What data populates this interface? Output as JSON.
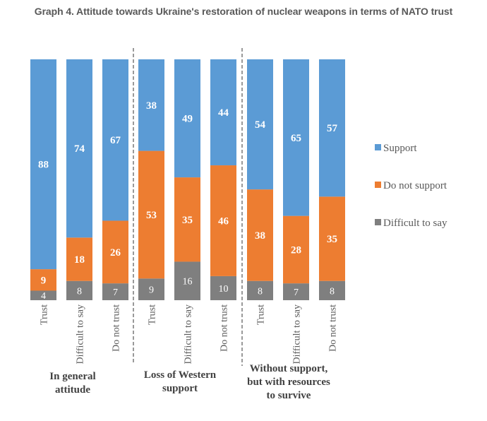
{
  "chart_data": {
    "type": "bar",
    "stacked": true,
    "title": "Graph 4. Attitude towards Ukraine's restoration of nuclear weapons in terms of NATO trust",
    "xlabel": "",
    "ylabel": "",
    "ylim": [
      0,
      100
    ],
    "grid": false,
    "legend_position": "right",
    "categories": [
      "Trust",
      "Difficult to say",
      "Do not trust",
      "Trust",
      "Difficult to say",
      "Do not trust",
      "Trust",
      "Difficult to say",
      "Do not trust"
    ],
    "groups": [
      {
        "label": "In general attitude",
        "lines": [
          "In general",
          "attitude"
        ],
        "categories": [
          0,
          1,
          2
        ]
      },
      {
        "label": "Loss of Western support",
        "lines": [
          "Loss of Western",
          "support"
        ],
        "categories": [
          3,
          4,
          5
        ]
      },
      {
        "label": "Without support, but with resources to survive",
        "lines": [
          "Without support,",
          "but with resources",
          "to survive"
        ],
        "categories": [
          6,
          7,
          8
        ]
      }
    ],
    "series": [
      {
        "name": "Difficult to say",
        "color": "#7f7f7f",
        "values": [
          4,
          8,
          7,
          9,
          16,
          10,
          8,
          7,
          8
        ]
      },
      {
        "name": "Do not support",
        "color": "#ed7d31",
        "values": [
          9,
          18,
          26,
          53,
          35,
          46,
          38,
          28,
          35
        ]
      },
      {
        "name": "Support",
        "color": "#5b9bd5",
        "values": [
          88,
          74,
          67,
          38,
          49,
          44,
          54,
          65,
          57
        ]
      }
    ],
    "legend": [
      "Support",
      "Do not support",
      "Difficult to say"
    ]
  }
}
